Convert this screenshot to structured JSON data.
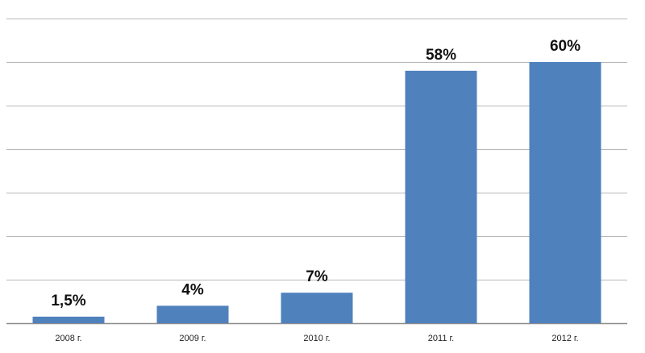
{
  "chart_data": {
    "type": "bar",
    "categories": [
      "2008 г.",
      "2009 г.",
      "2010 г.",
      "2011 г.",
      "2012 г."
    ],
    "values": [
      1.5,
      4,
      7,
      58,
      60
    ],
    "data_labels": [
      "1,5%",
      "4%",
      "7%",
      "58%",
      "60%"
    ],
    "title": "",
    "xlabel": "",
    "ylabel": "",
    "ylim": [
      0,
      70
    ],
    "grid": true,
    "bar_color": "#4f81bd",
    "legend": "none"
  }
}
